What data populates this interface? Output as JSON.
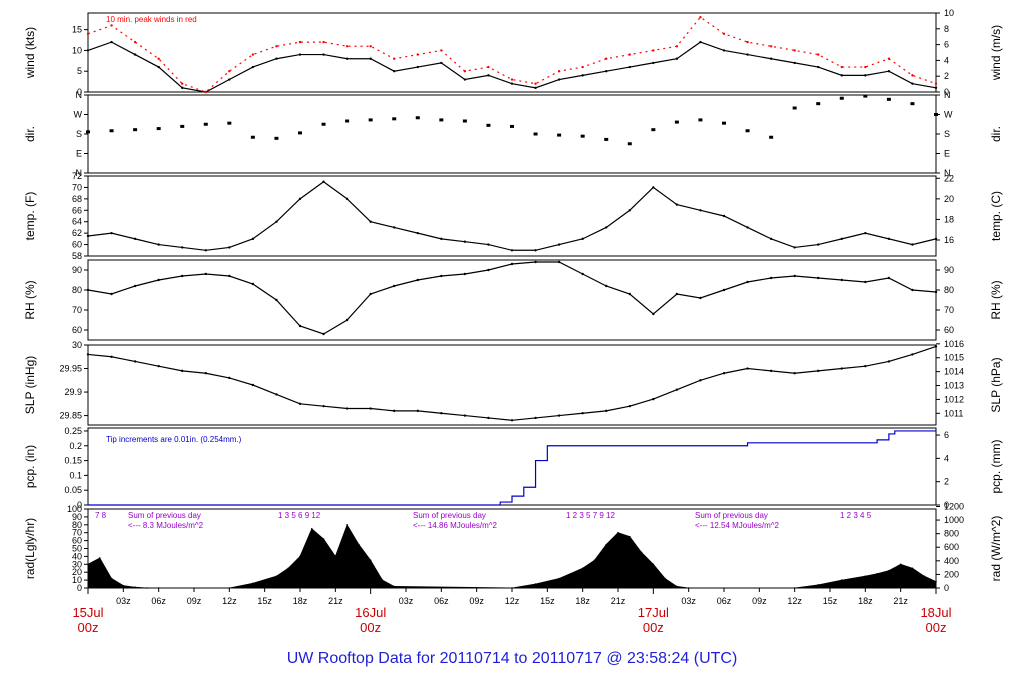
{
  "footer_title": "UW Rooftop Data for 20110714  to  20110717 @ 23:58:24  (UTC)",
  "colors": {
    "data": "#000000",
    "peak": "#ff0000",
    "precip": "#0000cc",
    "notes": "#9900cc",
    "dates": "#cc0000",
    "title": "#1f1fd8"
  },
  "chart_data": [
    {
      "type": "line",
      "id": "wind",
      "ylabel": "wind (kts)",
      "ylabel_right": "wind (m/s)",
      "ylim": [
        0,
        19
      ],
      "yticks": [
        0,
        5,
        10,
        15
      ],
      "right_ylim": [
        0,
        10
      ],
      "right_yticks": [
        0,
        2,
        4,
        6,
        8,
        10
      ],
      "annotation": "10 min. peak winds in red",
      "x_hours": [
        0,
        2,
        4,
        6,
        8,
        10,
        12,
        14,
        16,
        18,
        20,
        22,
        24,
        26,
        28,
        30,
        32,
        34,
        36,
        38,
        40,
        42,
        44,
        46,
        48,
        50,
        52,
        54,
        56,
        58,
        60,
        62,
        64,
        66,
        68,
        70,
        72
      ],
      "series": [
        {
          "values": [
            10,
            12,
            9,
            6,
            1,
            0,
            3,
            6,
            8,
            9,
            9,
            8,
            8,
            5,
            6,
            7,
            3,
            4,
            2,
            1,
            3,
            4,
            5,
            6,
            7,
            8,
            12,
            10,
            9,
            8,
            7,
            6,
            4,
            4,
            5,
            2,
            1
          ]
        },
        {
          "values": [
            14,
            16,
            12,
            8,
            2,
            0,
            5,
            9,
            11,
            12,
            12,
            11,
            11,
            8,
            9,
            10,
            5,
            6,
            3,
            2,
            5,
            6,
            8,
            9,
            10,
            11,
            18,
            14,
            12,
            11,
            10,
            9,
            6,
            6,
            8,
            4,
            2
          ]
        }
      ]
    },
    {
      "type": "scatter",
      "id": "dir",
      "ylabel": "dir.",
      "ylabel_right": "dir.",
      "ylim": [
        0,
        360
      ],
      "yticks": [
        0,
        90,
        180,
        270,
        360
      ],
      "ytick_labels": [
        "N",
        "E",
        "S",
        "W",
        "N"
      ],
      "right_yticks": [
        0,
        90,
        180,
        270,
        360
      ],
      "right_ytick_labels": [
        "N",
        "E",
        "S",
        "W",
        "N"
      ],
      "x_hours": [
        0,
        2,
        4,
        6,
        8,
        10,
        12,
        14,
        16,
        18,
        20,
        22,
        24,
        26,
        28,
        30,
        32,
        34,
        36,
        38,
        40,
        42,
        44,
        46,
        48,
        50,
        52,
        54,
        56,
        58,
        60,
        62,
        64,
        66,
        68,
        70,
        72
      ],
      "series": [
        {
          "values": [
            190,
            195,
            200,
            205,
            215,
            225,
            230,
            165,
            160,
            185,
            225,
            240,
            245,
            250,
            255,
            245,
            240,
            220,
            215,
            180,
            175,
            170,
            155,
            135,
            200,
            235,
            245,
            230,
            195,
            165,
            300,
            320,
            345,
            355,
            340,
            320,
            270
          ]
        }
      ]
    },
    {
      "type": "line",
      "id": "temp",
      "ylabel": "temp. (F)",
      "ylabel_right": "temp. (C)",
      "ylim": [
        58,
        72
      ],
      "yticks": [
        58,
        60,
        62,
        64,
        66,
        68,
        70,
        72
      ],
      "right_yticks": [
        16,
        18,
        20,
        22
      ],
      "x_hours": [
        0,
        2,
        4,
        6,
        8,
        10,
        12,
        14,
        16,
        18,
        20,
        22,
        24,
        26,
        28,
        30,
        32,
        34,
        36,
        38,
        40,
        42,
        44,
        46,
        48,
        50,
        52,
        54,
        56,
        58,
        60,
        62,
        64,
        66,
        68,
        70,
        72
      ],
      "series": [
        {
          "values": [
            61.5,
            62,
            61,
            60,
            59.5,
            59,
            59.5,
            61,
            64,
            68,
            71,
            68,
            64,
            63,
            62,
            61,
            60.5,
            60,
            59,
            59,
            60,
            61,
            63,
            66,
            70,
            67,
            66,
            65,
            63,
            61,
            59.5,
            60,
            61,
            62,
            61,
            60,
            61
          ]
        }
      ]
    },
    {
      "type": "line",
      "id": "rh",
      "ylabel": "RH (%)",
      "ylabel_right": "RH (%)",
      "ylim": [
        55,
        95
      ],
      "yticks": [
        60,
        70,
        80,
        90
      ],
      "right_yticks": [
        60,
        70,
        80,
        90
      ],
      "x_hours": [
        0,
        2,
        4,
        6,
        8,
        10,
        12,
        14,
        16,
        18,
        20,
        22,
        24,
        26,
        28,
        30,
        32,
        34,
        36,
        38,
        40,
        42,
        44,
        46,
        48,
        50,
        52,
        54,
        56,
        58,
        60,
        62,
        64,
        66,
        68,
        70,
        72
      ],
      "series": [
        {
          "values": [
            80,
            78,
            82,
            85,
            87,
            88,
            87,
            83,
            75,
            62,
            58,
            65,
            78,
            82,
            85,
            87,
            88,
            90,
            93,
            94,
            94,
            88,
            82,
            78,
            68,
            78,
            76,
            80,
            84,
            86,
            87,
            86,
            85,
            84,
            86,
            80,
            79
          ]
        }
      ]
    },
    {
      "type": "line",
      "id": "slp",
      "ylabel": "SLP (inHg)",
      "ylabel_right": "SLP (hPa)",
      "ylim": [
        29.83,
        30.0
      ],
      "yticks": [
        29.85,
        29.9,
        29.95,
        30.0
      ],
      "right_yticks": [
        1011,
        1012,
        1013,
        1014,
        1015,
        1016
      ],
      "x_hours": [
        0,
        2,
        4,
        6,
        8,
        10,
        12,
        14,
        16,
        18,
        20,
        22,
        24,
        26,
        28,
        30,
        32,
        34,
        36,
        38,
        40,
        42,
        44,
        46,
        48,
        50,
        52,
        54,
        56,
        58,
        60,
        62,
        64,
        66,
        68,
        70,
        72
      ],
      "series": [
        {
          "values": [
            29.98,
            29.975,
            29.965,
            29.955,
            29.945,
            29.94,
            29.93,
            29.915,
            29.895,
            29.875,
            29.87,
            29.865,
            29.865,
            29.86,
            29.86,
            29.855,
            29.85,
            29.845,
            29.84,
            29.845,
            29.85,
            29.855,
            29.86,
            29.87,
            29.885,
            29.905,
            29.925,
            29.94,
            29.95,
            29.945,
            29.94,
            29.945,
            29.95,
            29.955,
            29.965,
            29.98,
            29.997
          ]
        }
      ]
    },
    {
      "type": "line",
      "id": "pcp",
      "ylabel": "pcp. (in)",
      "ylabel_right": "pcp. (mm)",
      "ylim": [
        0,
        0.26
      ],
      "yticks": [
        0,
        0.05,
        0.1,
        0.15,
        0.2,
        0.25
      ],
      "right_yticks": [
        0,
        2,
        4,
        6
      ],
      "annotation": "Tip increments are 0.01in. (0.254mm.)",
      "x_hours": [
        0,
        34.5,
        35,
        36,
        37,
        38,
        39,
        40,
        56,
        67,
        68,
        68.5,
        72
      ],
      "series": [
        {
          "values": [
            0,
            0,
            0.01,
            0.03,
            0.06,
            0.15,
            0.2,
            0.2,
            0.21,
            0.22,
            0.24,
            0.25,
            0.25
          ]
        }
      ]
    },
    {
      "type": "area",
      "id": "rad",
      "ylabel": "rad(Lgly/hr)",
      "ylabel_right": "rad (W/m^2)",
      "ylim": [
        0,
        100
      ],
      "yticks": [
        0,
        10,
        20,
        30,
        40,
        50,
        60,
        70,
        80,
        90,
        100
      ],
      "right_yticks": [
        0,
        200,
        400,
        600,
        800,
        1000,
        1200
      ],
      "x_hours": [
        0,
        1,
        2,
        3,
        4,
        5,
        6,
        12,
        14,
        16,
        17,
        18,
        19,
        20,
        21,
        22,
        23,
        24,
        25,
        26,
        36,
        38,
        40,
        42,
        43,
        44,
        45,
        46,
        47,
        48,
        49,
        50,
        51,
        60,
        62,
        64,
        66,
        67,
        68,
        69,
        70,
        71,
        72
      ],
      "series": [
        {
          "values": [
            30,
            38,
            12,
            3,
            1,
            0,
            0,
            0,
            6,
            15,
            25,
            40,
            75,
            62,
            40,
            80,
            55,
            35,
            10,
            2,
            0,
            5,
            12,
            25,
            35,
            55,
            70,
            65,
            45,
            30,
            12,
            2,
            0,
            0,
            4,
            10,
            15,
            18,
            22,
            30,
            25,
            15,
            8
          ]
        }
      ],
      "annotations": [
        {
          "label": "7  8",
          "at_hour": 1
        },
        {
          "label": "1   3    5    6    9   12",
          "at_hour": 20
        },
        {
          "label": "1    2    3    5   7   9    12",
          "at_hour": 44
        },
        {
          "label": "1        2      3    4    5",
          "at_hour": 67
        }
      ],
      "daily_notes": [
        {
          "line1": "Sum of previous day",
          "line2": "<--- 8.3 MJoules/m^2"
        },
        {
          "line1": "Sum of previous day",
          "line2": "<--- 14.86 MJoules/m^2"
        },
        {
          "line1": "Sum of previous day",
          "line2": "<--- 12.54 MJoules/m^2"
        }
      ],
      "xticks_hours": [
        3,
        6,
        9,
        12,
        15,
        18,
        21,
        27,
        30,
        33,
        36,
        39,
        42,
        45,
        51,
        54,
        57,
        60,
        63,
        66,
        69
      ],
      "xtick_labels": [
        "03z",
        "06z",
        "09z",
        "12z",
        "15z",
        "18z",
        "21z",
        "03z",
        "06z",
        "09z",
        "12z",
        "15z",
        "18z",
        "21z",
        "03z",
        "06z",
        "09z",
        "12z",
        "15z",
        "18z",
        "21z"
      ],
      "day_labels": [
        {
          "day": "15Jul",
          "hour": "00z",
          "at_hour": 0
        },
        {
          "day": "16Jul",
          "hour": "00z",
          "at_hour": 24
        },
        {
          "day": "17Jul",
          "hour": "00z",
          "at_hour": 48
        },
        {
          "day": "18Jul",
          "hour": "00z",
          "at_hour": 72
        }
      ]
    }
  ]
}
